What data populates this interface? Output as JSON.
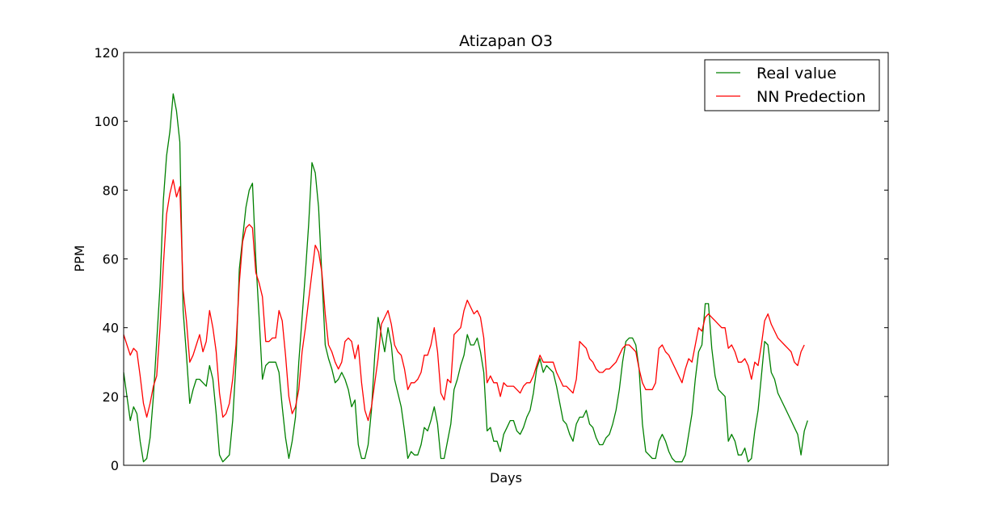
{
  "chart_data": {
    "type": "line",
    "title": "Atizapan O3",
    "xlabel": "Days",
    "ylabel": "PPM",
    "ylim": [
      0,
      120
    ],
    "xlim": [
      0,
      317
    ],
    "yticks": [
      "0",
      "20",
      "40",
      "60",
      "80",
      "100",
      "120"
    ],
    "grid": false,
    "legend_position": "top-right",
    "series": [
      {
        "name": "Real value",
        "color": "#008000",
        "values": [
          27,
          20,
          13,
          17,
          15,
          7,
          1,
          2,
          8,
          20,
          36,
          52,
          77,
          90,
          97,
          108,
          103,
          94,
          45,
          32,
          18,
          22,
          25,
          25,
          24,
          23,
          29,
          25,
          15,
          3,
          1,
          2,
          3,
          13,
          30,
          57,
          66,
          75,
          80,
          82,
          60,
          43,
          25,
          29,
          30,
          30,
          30,
          27,
          17,
          8,
          2,
          7,
          14,
          30,
          43,
          56,
          70,
          88,
          85,
          75,
          55,
          35,
          31,
          28,
          24,
          25,
          27,
          25,
          22,
          17,
          19,
          6,
          2,
          2,
          6,
          16,
          32,
          43,
          38,
          33,
          40,
          35,
          25,
          21,
          17,
          10,
          2,
          4,
          3,
          3,
          6,
          11,
          10,
          13,
          17,
          12,
          2,
          2,
          7,
          12,
          22,
          25,
          29,
          32,
          38,
          35,
          35,
          37,
          33,
          27,
          10,
          11,
          7,
          7,
          4,
          9,
          11,
          13,
          13,
          10,
          9,
          11,
          14,
          16,
          21,
          28,
          31,
          27,
          29,
          28,
          27,
          23,
          18,
          13,
          12,
          9,
          7,
          12,
          14,
          14,
          16,
          12,
          11,
          8,
          6,
          6,
          8,
          9,
          12,
          16,
          22,
          30,
          36,
          37,
          37,
          35,
          28,
          12,
          4,
          3,
          2,
          2,
          7,
          9,
          7,
          4,
          2,
          1,
          1,
          1,
          3,
          9,
          15,
          25,
          33,
          35,
          47,
          47,
          34,
          26,
          22,
          21,
          20,
          7,
          9,
          7,
          3,
          3,
          5,
          1,
          2,
          10,
          16,
          26,
          36,
          35,
          27,
          25,
          21,
          19,
          17,
          15,
          13,
          11,
          9,
          3,
          10,
          13
        ],
        "x_step": 1.37
      },
      {
        "name": "NN Predection",
        "color": "#ff0000",
        "values": [
          38,
          35,
          32,
          34,
          33,
          26,
          18,
          14,
          18,
          23,
          26,
          40,
          58,
          73,
          79,
          83,
          78,
          81,
          51,
          42,
          30,
          32,
          35,
          38,
          33,
          36,
          45,
          40,
          33,
          21,
          14,
          15,
          18,
          25,
          35,
          53,
          65,
          69,
          70,
          69,
          56,
          53,
          49,
          36,
          36,
          37,
          37,
          45,
          42,
          32,
          20,
          15,
          17,
          22,
          33,
          40,
          48,
          56,
          64,
          62,
          56,
          44,
          35,
          33,
          30,
          28,
          30,
          36,
          37,
          36,
          31,
          35,
          24,
          16,
          13,
          17,
          24,
          31,
          41,
          43,
          45,
          41,
          35,
          33,
          32,
          28,
          22,
          24,
          24,
          25,
          27,
          32,
          32,
          35,
          40,
          33,
          21,
          19,
          25,
          24,
          38,
          39,
          40,
          45,
          48,
          46,
          44,
          45,
          43,
          37,
          24,
          26,
          24,
          24,
          20,
          24,
          23,
          23,
          23,
          22,
          21,
          23,
          24,
          24,
          26,
          29,
          32,
          30,
          30,
          30,
          30,
          27,
          25,
          23,
          23,
          22,
          21,
          25,
          36,
          35,
          34,
          31,
          30,
          28,
          27,
          27,
          28,
          28,
          29,
          30,
          32,
          34,
          35,
          35,
          34,
          33,
          28,
          24,
          22,
          22,
          22,
          24,
          34,
          35,
          33,
          32,
          30,
          28,
          26,
          24,
          28,
          31,
          30,
          35,
          40,
          39,
          43,
          44,
          43,
          42,
          41,
          40,
          40,
          34,
          35,
          33,
          30,
          30,
          31,
          29,
          25,
          30,
          29,
          35,
          42,
          44,
          41,
          39,
          37,
          36,
          35,
          34,
          33,
          30,
          29,
          33,
          35
        ],
        "x_step": 1.37
      }
    ]
  }
}
